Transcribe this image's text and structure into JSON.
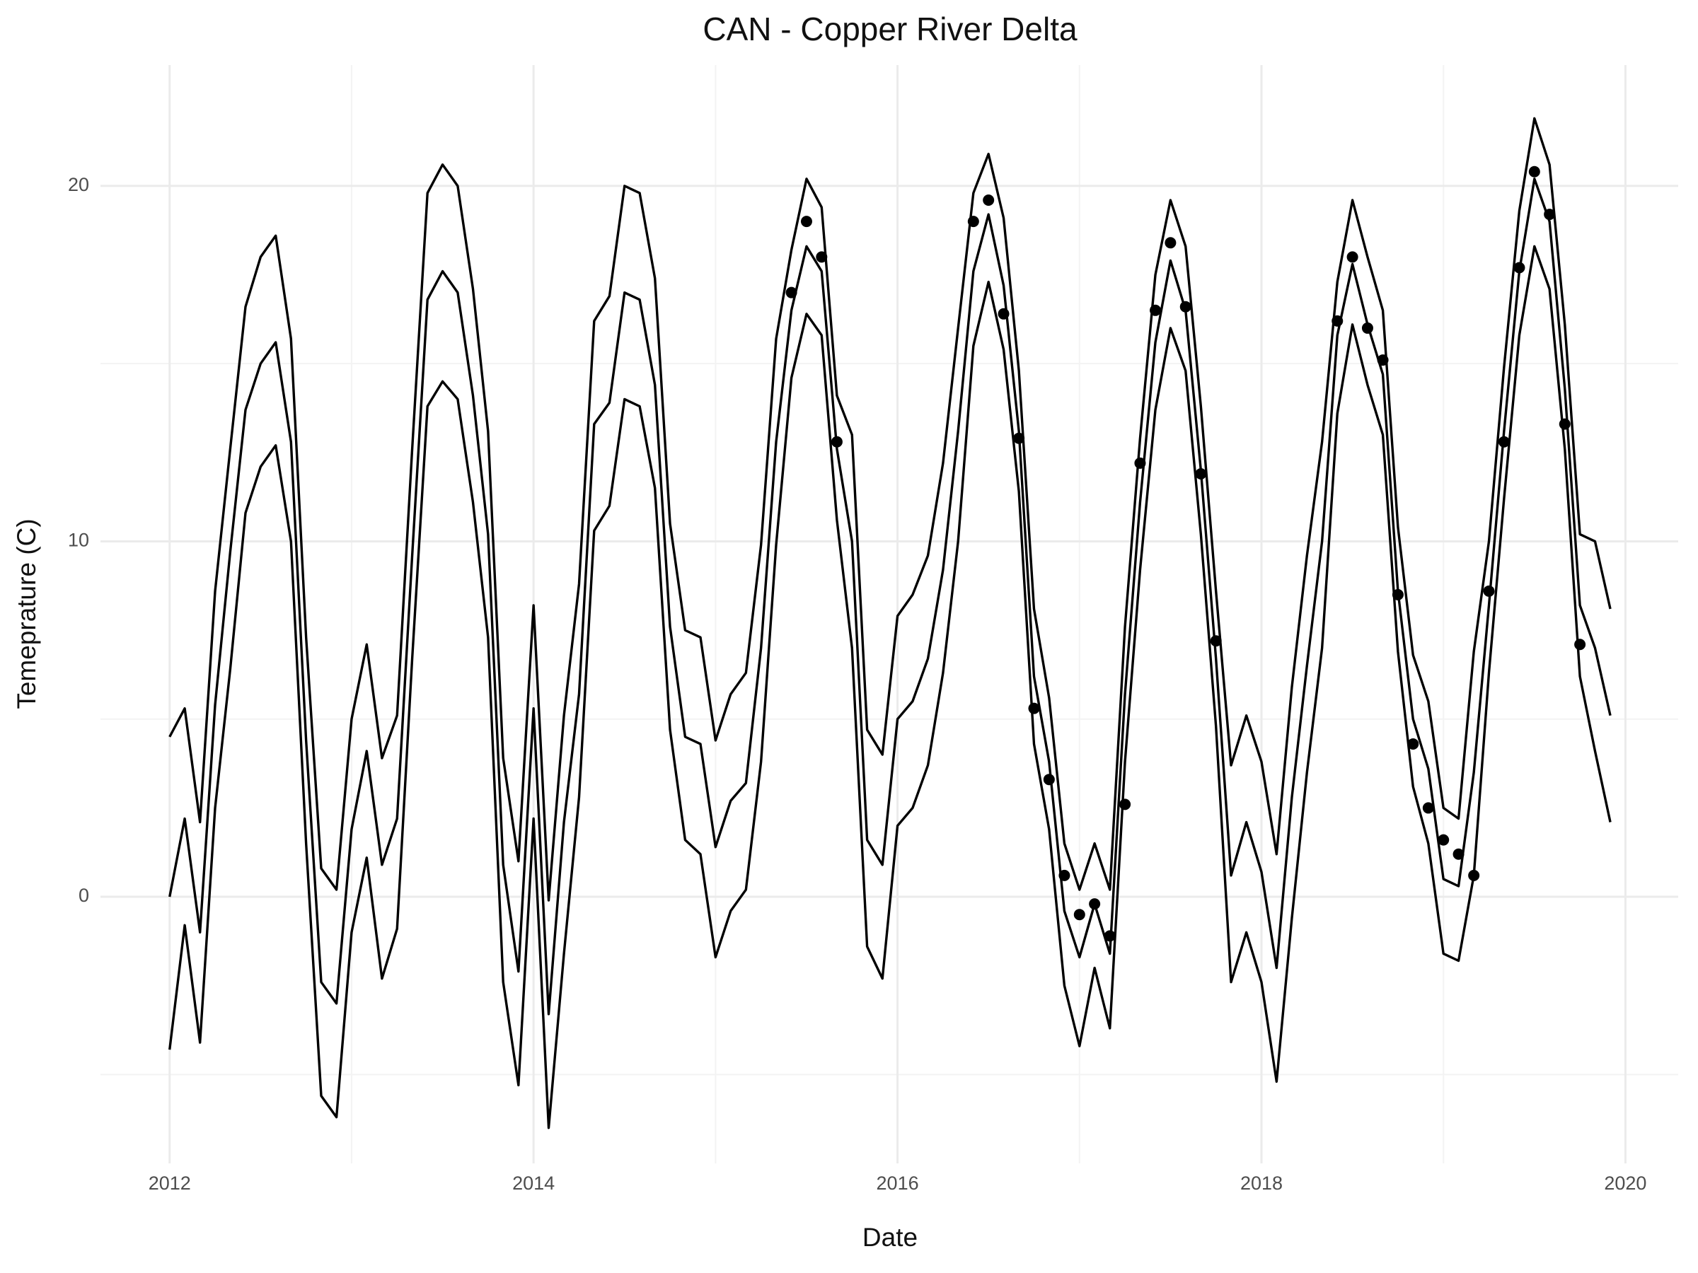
{
  "chart_data": {
    "type": "line",
    "title": "CAN - Copper River Delta",
    "x_label": "Date",
    "y_label": "Temeprature (C)",
    "xlim": [
      2011.62,
      2020.29
    ],
    "xticks": [
      2012,
      2014,
      2016,
      2018,
      2020
    ],
    "x_minor_grid": [
      2013,
      2015,
      2017,
      2019
    ],
    "ylim": [
      -7.5,
      23.4
    ],
    "yticks": [
      0,
      10,
      20
    ],
    "y_minor_grid": [
      -5,
      5,
      15
    ],
    "grid": true,
    "x": [
      2012,
      2012.083,
      2012.167,
      2012.25,
      2012.333,
      2012.417,
      2012.5,
      2012.583,
      2012.667,
      2012.75,
      2012.833,
      2012.917,
      2013,
      2013.083,
      2013.167,
      2013.25,
      2013.333,
      2013.417,
      2013.5,
      2013.583,
      2013.667,
      2013.75,
      2013.833,
      2013.917,
      2014,
      2014.083,
      2014.167,
      2014.25,
      2014.333,
      2014.417,
      2014.5,
      2014.583,
      2014.667,
      2014.75,
      2014.833,
      2014.917,
      2015,
      2015.083,
      2015.167,
      2015.25,
      2015.333,
      2015.417,
      2015.5,
      2015.583,
      2015.667,
      2015.75,
      2015.833,
      2015.917,
      2016,
      2016.083,
      2016.167,
      2016.25,
      2016.333,
      2016.417,
      2016.5,
      2016.583,
      2016.667,
      2016.75,
      2016.833,
      2016.917,
      2017,
      2017.083,
      2017.167,
      2017.25,
      2017.333,
      2017.417,
      2017.5,
      2017.583,
      2017.667,
      2017.75,
      2017.833,
      2017.917,
      2018,
      2018.083,
      2018.167,
      2018.25,
      2018.333,
      2018.417,
      2018.5,
      2018.583,
      2018.667,
      2018.75,
      2018.833,
      2018.917,
      2019,
      2019.083,
      2019.167,
      2019.25,
      2019.333,
      2019.417,
      2019.5,
      2019.583,
      2019.667,
      2019.75,
      2019.833,
      2019.917
    ],
    "series": [
      {
        "type": "line",
        "color": "#000000",
        "values": [
          4.5,
          5.3,
          2.1,
          8.6,
          12.6,
          16.6,
          18.0,
          18.6,
          15.7,
          7.3,
          0.8,
          0.2,
          5.0,
          7.1,
          3.9,
          5.1,
          12.6,
          19.8,
          20.6,
          20.0,
          17.1,
          13.1,
          3.9,
          1.0,
          8.2,
          -0.1,
          5.1,
          8.8,
          16.2,
          16.9,
          20.0,
          19.8,
          17.4,
          10.5,
          7.5,
          7.3,
          4.4,
          5.7,
          6.3,
          9.9,
          15.7,
          18.2,
          20.2,
          19.4,
          14.1,
          13.0,
          4.7,
          4.0,
          7.9,
          8.5,
          9.6,
          12.2,
          16.0,
          19.8,
          20.9,
          19.1,
          14.8,
          8.1,
          5.6,
          1.5,
          0.2,
          1.5,
          0.2,
          7.6,
          12.9,
          17.5,
          19.6,
          18.3,
          13.8,
          8.6,
          3.7,
          5.1,
          3.8,
          1.2,
          5.9,
          9.6,
          12.8,
          17.3,
          19.6,
          18.0,
          16.5,
          10.4,
          6.8,
          5.5,
          2.5,
          2.2,
          6.9,
          10.0,
          14.9,
          19.3,
          21.9,
          20.6,
          16.1,
          10.2,
          10.0,
          8.1
        ]
      },
      {
        "type": "line",
        "color": "#000000",
        "values": [
          0,
          2.2,
          -1.0,
          5.4,
          9.7,
          13.7,
          15.0,
          15.6,
          12.8,
          4.4,
          -2.4,
          -3.0,
          1.9,
          4.1,
          0.9,
          2.2,
          9.6,
          16.8,
          17.6,
          17.0,
          14.1,
          10.2,
          0.9,
          -2.1,
          5.3,
          -3.3,
          2.1,
          5.7,
          13.3,
          13.9,
          17.0,
          16.8,
          14.4,
          7.6,
          4.5,
          4.3,
          1.4,
          2.7,
          3.2,
          7.0,
          12.8,
          16.5,
          18.3,
          17.6,
          12.6,
          10.0,
          1.6,
          0.9,
          5.0,
          5.5,
          6.7,
          9.2,
          13.1,
          17.6,
          19.2,
          17.2,
          13.1,
          6.2,
          3.8,
          -0.4,
          -1.7,
          -0.2,
          -1.6,
          5.7,
          11.1,
          15.6,
          17.9,
          16.5,
          12.0,
          6.7,
          0.6,
          2.1,
          0.7,
          -2.0,
          2.8,
          6.5,
          10.0,
          15.8,
          17.8,
          16.1,
          14.7,
          8.6,
          5.0,
          3.6,
          0.5,
          0.3,
          3.5,
          8.2,
          13.1,
          17.6,
          20.2,
          19.0,
          14.3,
          8.2,
          7.0,
          5.1
        ]
      },
      {
        "type": "line",
        "color": "#000000",
        "values": [
          -4.3,
          -0.8,
          -4.1,
          2.5,
          6.4,
          10.8,
          12.1,
          12.7,
          10.0,
          1.5,
          -5.6,
          -6.2,
          -1.0,
          1.1,
          -2.3,
          -0.9,
          6.7,
          13.8,
          14.5,
          14.0,
          11.1,
          7.3,
          -2.4,
          -5.3,
          2.2,
          -6.5,
          -1.6,
          2.8,
          10.3,
          11.0,
          14.0,
          13.8,
          11.5,
          4.7,
          1.6,
          1.2,
          -1.7,
          -0.4,
          0.2,
          3.8,
          9.9,
          14.6,
          16.4,
          15.8,
          10.6,
          7.0,
          -1.4,
          -2.3,
          2.0,
          2.5,
          3.7,
          6.3,
          10.0,
          15.5,
          17.3,
          15.4,
          11.4,
          4.3,
          1.9,
          -2.5,
          -4.2,
          -2.0,
          -3.7,
          3.8,
          9.2,
          13.7,
          16.0,
          14.8,
          10.2,
          4.8,
          -2.4,
          -1.0,
          -2.4,
          -5.2,
          -0.6,
          3.5,
          7.0,
          13.6,
          16.1,
          14.4,
          13.0,
          6.9,
          3.1,
          1.5,
          -1.6,
          -1.8,
          0.6,
          6.3,
          11.2,
          15.8,
          18.3,
          17.1,
          12.6,
          6.2,
          4.1,
          2.1
        ]
      },
      {
        "type": "scatter",
        "color": "#000000",
        "values": [
          null,
          null,
          null,
          null,
          null,
          null,
          null,
          null,
          null,
          null,
          null,
          null,
          null,
          null,
          null,
          null,
          null,
          null,
          null,
          null,
          null,
          null,
          null,
          null,
          null,
          null,
          null,
          null,
          null,
          null,
          null,
          null,
          null,
          null,
          null,
          null,
          null,
          null,
          null,
          null,
          null,
          17.0,
          19.0,
          18.0,
          12.8,
          null,
          null,
          null,
          null,
          null,
          null,
          null,
          null,
          19.0,
          19.6,
          16.4,
          12.9,
          5.3,
          3.3,
          0.6,
          -0.5,
          -0.2,
          -1.1,
          2.6,
          12.2,
          16.5,
          18.4,
          16.6,
          11.9,
          7.2,
          null,
          null,
          null,
          null,
          null,
          null,
          null,
          16.2,
          18.0,
          16.0,
          15.1,
          8.5,
          4.3,
          2.5,
          1.6,
          1.2,
          0.6,
          8.6,
          12.8,
          17.7,
          20.4,
          19.2,
          13.3,
          7.1,
          null,
          null
        ]
      }
    ]
  }
}
